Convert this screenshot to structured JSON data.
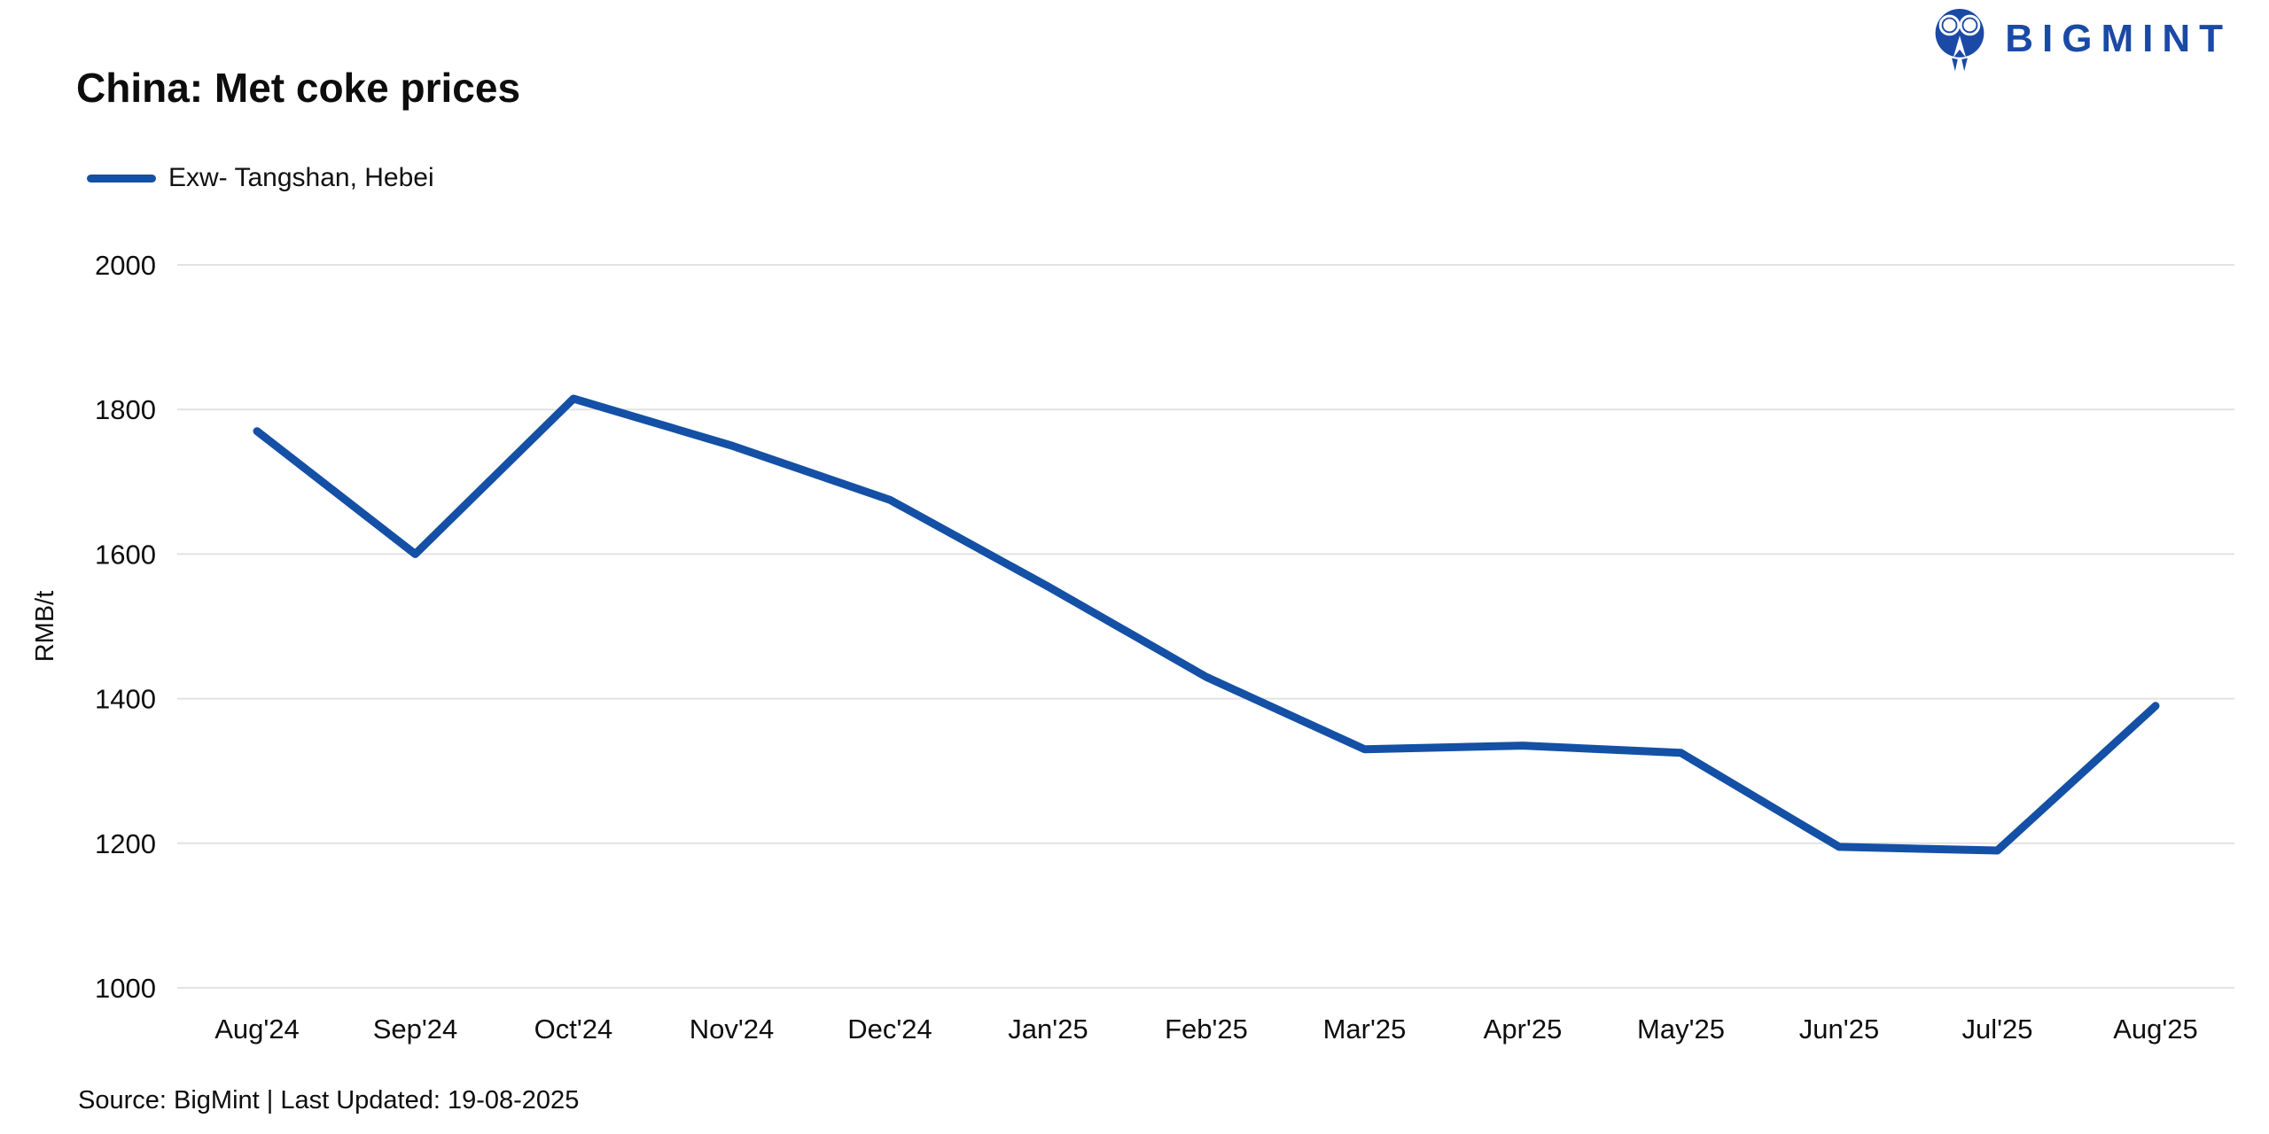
{
  "header": {
    "title": "China: Met coke prices",
    "legend_label": "Exw- Tangshan, Hebei"
  },
  "logo": {
    "text": "BIGMINT",
    "color": "#1a4aa5"
  },
  "footer": {
    "source": "Source: BigMint | Last Updated: 19-08-2025"
  },
  "chart_data": {
    "type": "line",
    "title": "China: Met coke prices",
    "xlabel": "",
    "ylabel": "RMB/t",
    "ylim": [
      1000,
      2000
    ],
    "yticks": [
      2000,
      1800,
      1600,
      1400,
      1200,
      1000
    ],
    "grid": "horizontal-only",
    "gridline_color": "#e2e2e2",
    "tick_label_color": "#0d0d0d",
    "legend_position": "top-left",
    "categories": [
      "Aug'24",
      "Sep'24",
      "Oct'24",
      "Nov'24",
      "Dec'24",
      "Jan'25",
      "Feb'25",
      "Mar'25",
      "Apr'25",
      "May'25",
      "Jun'25",
      "Jul'25",
      "Aug'25"
    ],
    "series": [
      {
        "name": "Exw- Tangshan, Hebei",
        "color": "#1450a5",
        "values": [
          1770,
          1600,
          1815,
          1750,
          1675,
          1555,
          1430,
          1330,
          1335,
          1325,
          1195,
          1190,
          1390
        ]
      }
    ]
  }
}
